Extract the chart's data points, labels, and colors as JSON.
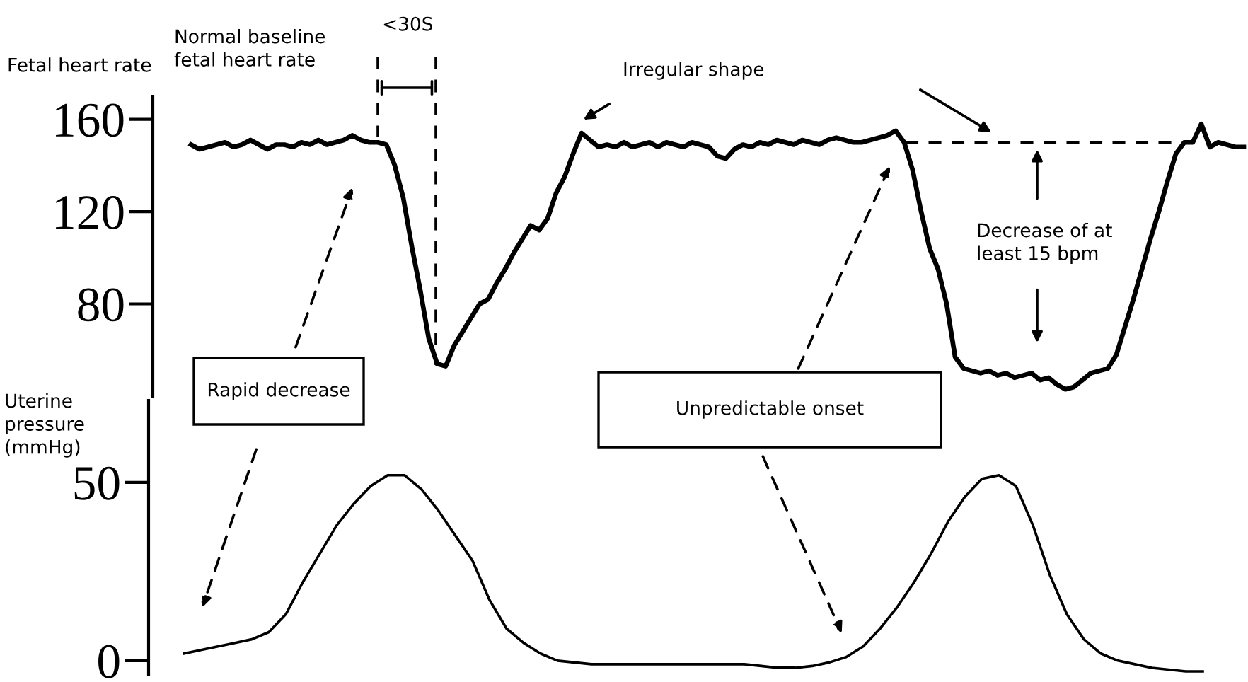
{
  "chart_data": [
    {
      "type": "line",
      "ylabel": "Fetal heart rate",
      "color": "#000000",
      "tick_labels": "y",
      "grid": false,
      "legend": false,
      "marker": "none",
      "line_style": "solid",
      "categories": [
        null,
        null,
        null,
        null,
        null,
        null,
        null,
        null,
        null,
        null,
        null,
        null,
        null,
        null,
        null,
        null,
        null,
        null,
        null,
        null,
        null,
        null,
        null,
        null,
        null,
        null,
        null,
        null,
        null,
        null,
        null,
        null,
        null,
        null,
        null,
        null,
        null,
        null,
        null,
        null,
        null,
        null,
        null,
        null,
        null,
        null,
        null,
        null,
        null,
        null,
        null,
        null,
        null,
        null,
        null,
        null,
        null,
        null,
        null,
        null,
        null,
        null,
        null,
        null,
        null,
        null,
        null,
        null,
        null,
        null,
        null,
        null,
        null,
        null,
        null,
        null,
        null,
        null,
        null,
        null,
        null,
        null,
        null,
        null,
        null,
        null,
        null,
        null,
        null,
        null,
        null,
        null,
        null,
        null,
        null,
        null,
        null,
        null,
        null,
        null,
        null,
        null,
        null,
        null,
        null,
        null,
        null,
        null,
        null,
        null,
        null,
        null,
        null,
        null,
        null,
        null,
        null,
        null,
        null,
        null,
        null,
        null,
        null,
        null,
        null
      ],
      "values": [
        149,
        147,
        148,
        149,
        150,
        148,
        149,
        151,
        149,
        147,
        149,
        149,
        148,
        150,
        149,
        151,
        149,
        150,
        151,
        153,
        151,
        150,
        150,
        149,
        140,
        126,
        105,
        86,
        65,
        54,
        53,
        62,
        68,
        74,
        80,
        82,
        89,
        95,
        102,
        108,
        114,
        112,
        117,
        128,
        135,
        145,
        154,
        151,
        148,
        149,
        148,
        150,
        148,
        149,
        150,
        148,
        150,
        149,
        148,
        150,
        149,
        148,
        144,
        143,
        147,
        149,
        148,
        150,
        149,
        151,
        150,
        149,
        151,
        150,
        149,
        151,
        152,
        151,
        150,
        150,
        151,
        152,
        153,
        155,
        150,
        138,
        120,
        104,
        95,
        80,
        57,
        52,
        51,
        50,
        51,
        49,
        50,
        48,
        49,
        50,
        47,
        48,
        45,
        43,
        44,
        47,
        50,
        51,
        52,
        58,
        70,
        82,
        95,
        108,
        120,
        133,
        145,
        150,
        150,
        158,
        148,
        150,
        149,
        148,
        148
      ],
      "ylim": [
        40,
        170
      ],
      "yticks": [
        80,
        120,
        160
      ],
      "ref_lines": [
        {
          "axis": "y",
          "value": 150,
          "line_style": "dashed",
          "color": "#000000"
        }
      ],
      "annotations": [
        "Normal baseline\nfetal heart rate",
        "<30S",
        "Irregular shape",
        "Decrease of at\nleast 15 bpm"
      ]
    },
    {
      "type": "line",
      "ylabel": "Uterine\npressure\n(mmHg)",
      "color": "#000000",
      "tick_labels": "y",
      "grid": false,
      "legend": false,
      "marker": "none",
      "line_style": "solid",
      "categories": [
        null,
        null,
        null,
        null,
        null,
        null,
        null,
        null,
        null,
        null,
        null,
        null,
        null,
        null,
        null,
        null,
        null,
        null,
        null,
        null,
        null,
        null,
        null,
        null,
        null,
        null,
        null,
        null,
        null,
        null,
        null,
        null,
        null,
        null,
        null,
        null,
        null,
        null,
        null,
        null,
        null,
        null,
        null,
        null,
        null,
        null,
        null,
        null,
        null,
        null,
        null,
        null,
        null,
        null,
        null,
        null,
        null,
        null,
        null,
        null,
        null
      ],
      "values": [
        2,
        3,
        4,
        5,
        6,
        8,
        13,
        22,
        30,
        38,
        44,
        49,
        52,
        52,
        48,
        42,
        35,
        28,
        17,
        9,
        5,
        2,
        0,
        -0.5,
        -1,
        -1,
        -1,
        -1,
        -1,
        -1,
        -1,
        -1,
        -1,
        -1,
        -1.5,
        -2,
        -2,
        -1.5,
        -0.5,
        1,
        4,
        9,
        15,
        22,
        30,
        39,
        46,
        51,
        52,
        49,
        38,
        24,
        13,
        6,
        2,
        0,
        -1,
        -2,
        -2.5,
        -3,
        -3
      ],
      "ylim": [
        -4,
        73
      ],
      "yticks": [
        0,
        50
      ],
      "annotations": [
        "Rapid decrease",
        "Unpredictable onset"
      ]
    }
  ]
}
